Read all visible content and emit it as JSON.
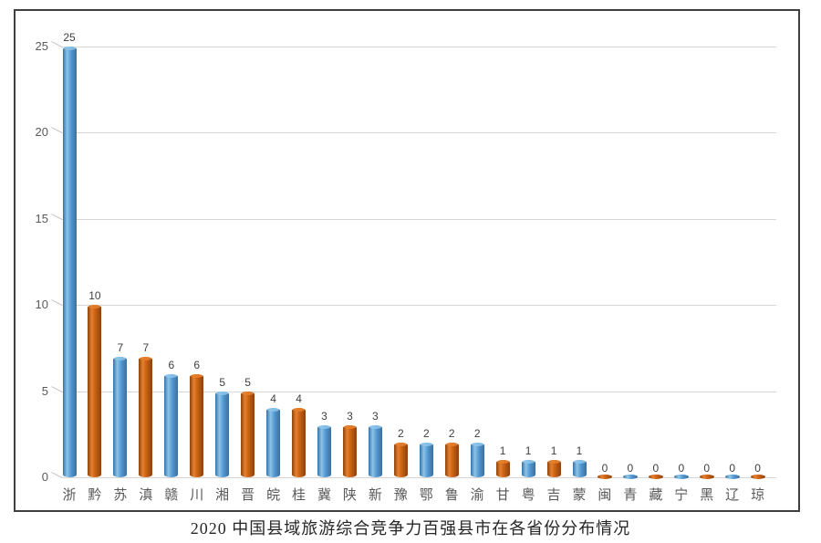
{
  "chart_data": {
    "type": "bar",
    "title": "2020 中国县域旅游综合竞争力百强县市在各省份分布情况",
    "categories": [
      "浙",
      "黔",
      "苏",
      "滇",
      "赣",
      "川",
      "湘",
      "晋",
      "皖",
      "桂",
      "冀",
      "陕",
      "新",
      "豫",
      "鄂",
      "鲁",
      "渝",
      "甘",
      "粤",
      "吉",
      "蒙",
      "闽",
      "青",
      "藏",
      "宁",
      "黑",
      "辽",
      "琼"
    ],
    "values": [
      25,
      10,
      7,
      7,
      6,
      6,
      5,
      5,
      4,
      4,
      3,
      3,
      3,
      2,
      2,
      2,
      2,
      1,
      1,
      1,
      1,
      0,
      0,
      0,
      0,
      0,
      0,
      0
    ],
    "xlabel": "",
    "ylabel": "",
    "ylim": [
      0,
      25
    ],
    "yticks": [
      0,
      5,
      10,
      15,
      20,
      25
    ],
    "ytick_labels": [
      "0",
      "5",
      "10",
      "15",
      "20",
      "25"
    ],
    "grid": true,
    "legend": "none",
    "bar_style": "cylinder",
    "color_pattern": "alternating"
  },
  "colors": {
    "blue": {
      "edge": "#3a719f",
      "light": "#8cc4ea",
      "mid": "#4e94cf"
    },
    "orange": {
      "edge": "#8c430b",
      "light": "#e5802d",
      "mid": "#c35a12"
    },
    "grid": "#d6d6d6",
    "axis_text": "#595959",
    "value_text": "#3f3f3f",
    "frame_border": "#3f3f3f",
    "title_text": "#262626"
  }
}
